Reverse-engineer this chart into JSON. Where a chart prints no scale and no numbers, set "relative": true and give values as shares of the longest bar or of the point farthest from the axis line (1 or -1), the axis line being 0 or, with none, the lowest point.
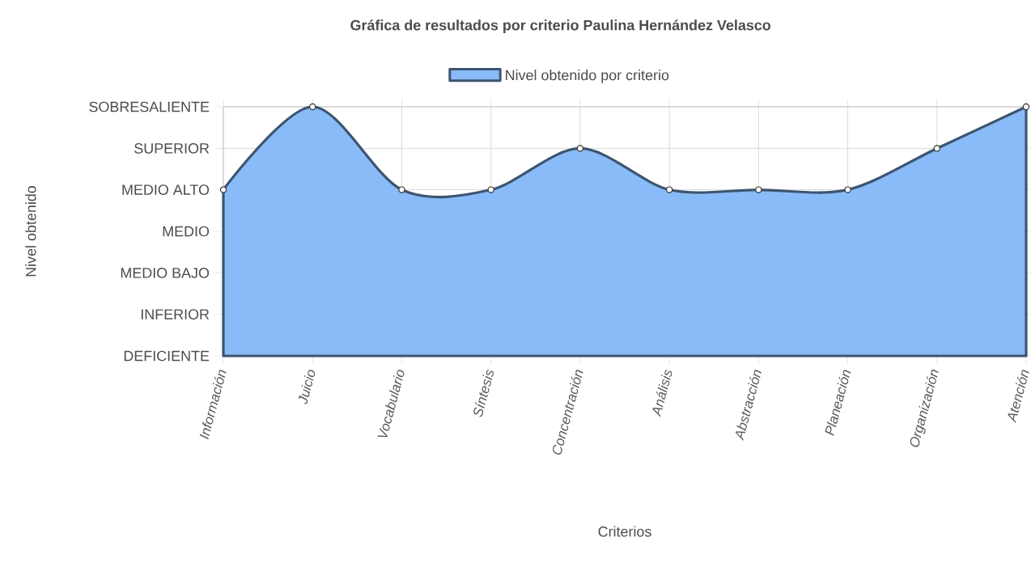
{
  "chart_data": {
    "type": "area",
    "title": "Gráfica de resultados por criterio Paulina Hernández Velasco",
    "xlabel": "Criterios",
    "annotations": [
      "Nivel obtenido"
    ],
    "categories": [
      "Información",
      "Juicio",
      "Vocabulario",
      "Síntesis",
      "Concentración",
      "Análisis",
      "Abstracción",
      "Planeación",
      "Organización",
      "Atención"
    ],
    "series": [
      {
        "name": "Nivel obtenido por criterio",
        "color": "#88bbf7",
        "values": [
          0.667,
          1,
          0.667,
          0.667,
          0.833,
          0.667,
          0.667,
          0.667,
          0.833,
          1
        ]
      }
    ],
    "relative": true,
    "ref_lines": [
      {
        "axis": "y",
        "value": 0,
        "label": "DEFICIENTE"
      },
      {
        "axis": "y",
        "value": 0.167,
        "label": "INFERIOR"
      },
      {
        "axis": "y",
        "value": 0.333,
        "label": "MEDIO BAJO"
      },
      {
        "axis": "y",
        "value": 0.5,
        "label": "MEDIO"
      },
      {
        "axis": "y",
        "value": 0.667,
        "label": "MEDIO ALTO"
      },
      {
        "axis": "y",
        "value": 0.833,
        "label": "SUPERIOR"
      },
      {
        "axis": "y",
        "value": 1,
        "label": "SOBRESALIENTE"
      }
    ],
    "grid": "x",
    "legend": "top",
    "marker": "circle"
  }
}
